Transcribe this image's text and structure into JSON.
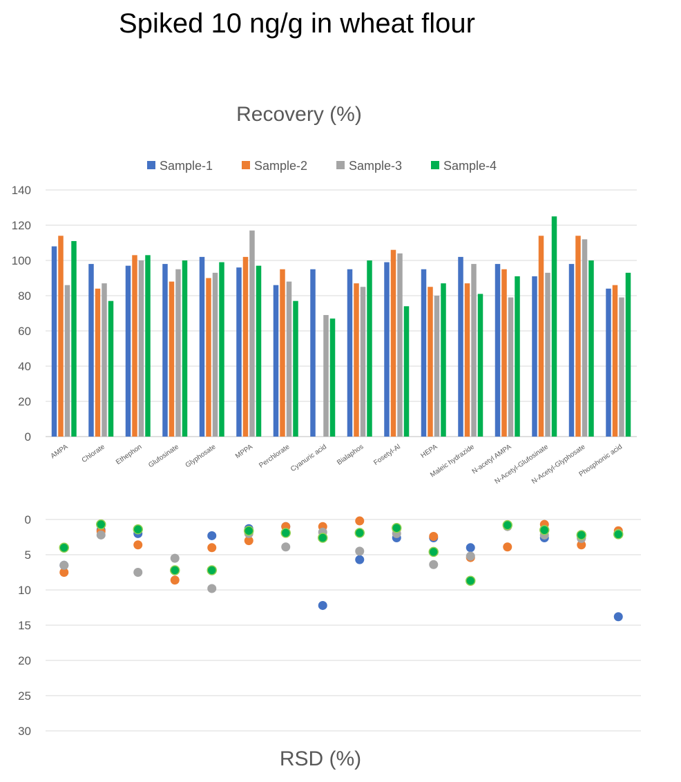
{
  "title": "Spiked 10 ng/g in wheat flour",
  "chart_data": [
    {
      "type": "bar",
      "title": "Recovery (%)",
      "xlabel": "",
      "ylabel": "",
      "ylim": [
        0,
        140
      ],
      "yticks": [
        0,
        20,
        40,
        60,
        80,
        100,
        120,
        140
      ],
      "grid": true,
      "legend": "top",
      "categories": [
        "AMPA",
        "Chlorate",
        "Ethephon",
        "Glufosinate",
        "Glyphosate",
        "MPPA",
        "Perchlorate",
        "Cyanuric acid",
        "Bialaphos",
        "Fosetyl-Al",
        "HEPA",
        "Maleic hydrazide",
        "N-acetyl AMPA",
        "N-Acetyl-Glufosinate",
        "N-Acetyl-Glyphosate",
        "Phosphonic acid"
      ],
      "series": [
        {
          "name": "Sample-1",
          "color": "#4472C4",
          "values": [
            108,
            98,
            97,
            98,
            102,
            96,
            86,
            95,
            95,
            99,
            95,
            102,
            98,
            91,
            98,
            84
          ]
        },
        {
          "name": "Sample-2",
          "color": "#ED7D31",
          "values": [
            114,
            84,
            103,
            88,
            90,
            102,
            95,
            null,
            87,
            106,
            85,
            87,
            95,
            114,
            114,
            86
          ]
        },
        {
          "name": "Sample-3",
          "color": "#A5A5A5",
          "values": [
            86,
            87,
            100,
            95,
            93,
            117,
            88,
            69,
            85,
            104,
            80,
            98,
            79,
            93,
            112,
            79
          ]
        },
        {
          "name": "Sample-4",
          "color": "#00B050",
          "values": [
            111,
            77,
            103,
            100,
            99,
            97,
            77,
            67,
            100,
            74,
            87,
            81,
            91,
            125,
            100,
            93
          ]
        }
      ]
    },
    {
      "type": "scatter",
      "title": "RSD (%)",
      "xlabel": "",
      "ylabel": "",
      "ylim": [
        0,
        30
      ],
      "yticks": [
        0,
        5,
        10,
        15,
        20,
        25,
        30
      ],
      "y_inverted": true,
      "grid": true,
      "categories": [
        "AMPA",
        "Chlorate",
        "Ethephon",
        "Glufosinate",
        "Glyphosate",
        "MPPA",
        "Perchlorate",
        "Cyanuric acid",
        "Bialaphos",
        "Fosetyl-Al",
        "HEPA",
        "Maleic hydrazide",
        "N-acetyl AMPA",
        "N-Acetyl-Glufosinate",
        "N-Acetyl-Glyphosate",
        "Phosphonic acid"
      ],
      "series": [
        {
          "name": "Sample-1",
          "color": "#4472C4",
          "values": [
            6.5,
            1.5,
            2.0,
            7.2,
            2.3,
            1.3,
            1.0,
            12.2,
            5.7,
            2.6,
            2.6,
            4.0,
            0.8,
            2.6,
            2.6,
            13.8
          ]
        },
        {
          "name": "Sample-2",
          "color": "#ED7D31",
          "values": [
            7.5,
            1.7,
            3.6,
            8.6,
            4.0,
            3.0,
            1.0,
            1.0,
            0.2,
            1.4,
            2.4,
            5.4,
            3.9,
            0.7,
            3.6,
            1.6
          ]
        },
        {
          "name": "Sample-3",
          "color": "#A5A5A5",
          "values": [
            6.5,
            2.2,
            7.5,
            5.5,
            9.8,
            2.0,
            3.9,
            1.8,
            4.5,
            2.0,
            6.4,
            5.2,
            1.0,
            2.2,
            2.7,
            2.0
          ]
        },
        {
          "name": "Sample-4",
          "color": "#00B050",
          "values": [
            4.0,
            0.7,
            1.4,
            7.2,
            7.2,
            1.6,
            1.9,
            2.6,
            1.9,
            1.2,
            4.6,
            8.7,
            0.8,
            1.5,
            2.2,
            2.1
          ]
        }
      ]
    }
  ]
}
